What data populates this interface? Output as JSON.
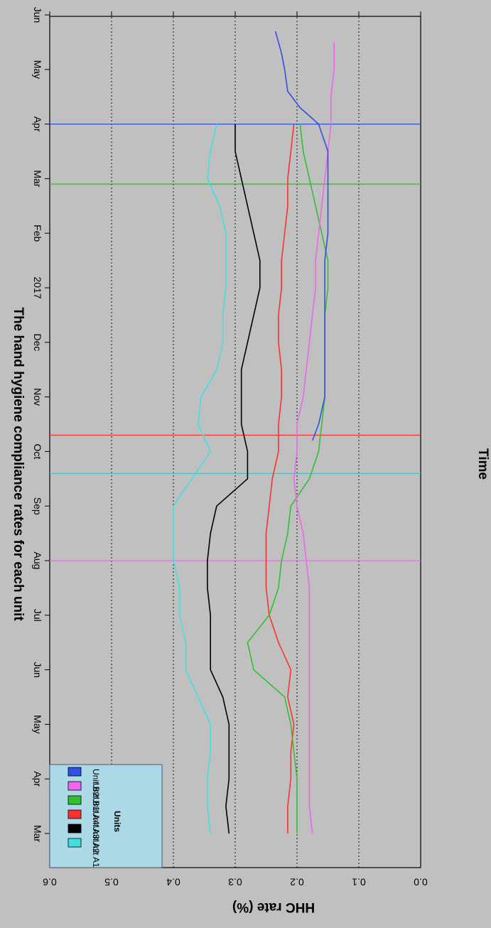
{
  "chart_data": {
    "type": "line",
    "title": "The hand hygiene compliance rates for each unit",
    "xlabel": "Time",
    "ylabel": "HHC rate (%)",
    "rotation": "image rotated 180 degrees",
    "x_ticks": [
      "Mar",
      "Apr",
      "May",
      "Jun",
      "Jul",
      "Aug",
      "Sep",
      "Oct",
      "Nov",
      "Dec",
      "2017",
      "Feb",
      "Mar",
      "Apr",
      "May",
      "Jun"
    ],
    "x_range_months": [
      0,
      15
    ],
    "y_ticks": [
      "0.0",
      "0.1",
      "0.2",
      "0.3",
      "0.4",
      "0.5",
      "0.6"
    ],
    "ylim": [
      0,
      0.6
    ],
    "grid": "horizontal dotted",
    "legend": {
      "title": "Units",
      "placement": "bottom-left",
      "entries": [
        "Unit A1",
        "Unit A2",
        "Unit A3",
        "Unit A4",
        "Unit B1",
        "Unit B2"
      ]
    },
    "series": [
      {
        "name": "Unit A1",
        "color": "#40e0e0",
        "points": [
          [
            0,
            0.34
          ],
          [
            0.5,
            0.345
          ],
          [
            1,
            0.345
          ],
          [
            1.5,
            0.34
          ],
          [
            2,
            0.34
          ],
          [
            2.5,
            0.36
          ],
          [
            3,
            0.38
          ],
          [
            3.5,
            0.38
          ],
          [
            4,
            0.39
          ],
          [
            4.5,
            0.39
          ],
          [
            5,
            0.4
          ],
          [
            5.5,
            0.4
          ],
          [
            6,
            0.4
          ],
          [
            6.5,
            0.37
          ],
          [
            7,
            0.34
          ],
          [
            7.5,
            0.36
          ],
          [
            8,
            0.355
          ],
          [
            8.5,
            0.33
          ],
          [
            9,
            0.32
          ],
          [
            9.5,
            0.32
          ],
          [
            10,
            0.315
          ],
          [
            10.5,
            0.315
          ],
          [
            11,
            0.315
          ],
          [
            11.5,
            0.325
          ],
          [
            12,
            0.345
          ],
          [
            12.5,
            0.34
          ],
          [
            13,
            0.33
          ]
        ]
      },
      {
        "name": "Unit A2",
        "color": "#000000",
        "points": [
          [
            0,
            0.31
          ],
          [
            0.5,
            0.315
          ],
          [
            1,
            0.31
          ],
          [
            1.5,
            0.31
          ],
          [
            2,
            0.31
          ],
          [
            2.5,
            0.32
          ],
          [
            3,
            0.34
          ],
          [
            3.5,
            0.34
          ],
          [
            4,
            0.34
          ],
          [
            4.5,
            0.345
          ],
          [
            5,
            0.345
          ],
          [
            5.5,
            0.34
          ],
          [
            6,
            0.33
          ],
          [
            6.5,
            0.28
          ],
          [
            7,
            0.28
          ],
          [
            7.5,
            0.29
          ],
          [
            8,
            0.29
          ],
          [
            8.5,
            0.29
          ],
          [
            9,
            0.28
          ],
          [
            9.5,
            0.27
          ],
          [
            10,
            0.26
          ],
          [
            10.5,
            0.26
          ],
          [
            11,
            0.27
          ],
          [
            11.5,
            0.28
          ],
          [
            12,
            0.29
          ],
          [
            12.5,
            0.3
          ],
          [
            13,
            0.3
          ]
        ]
      },
      {
        "name": "Unit A3",
        "color": "#ff3030",
        "points": [
          [
            0,
            0.215
          ],
          [
            0.5,
            0.215
          ],
          [
            1,
            0.21
          ],
          [
            1.5,
            0.21
          ],
          [
            2,
            0.205
          ],
          [
            2.5,
            0.215
          ],
          [
            3,
            0.21
          ],
          [
            3.5,
            0.23
          ],
          [
            4,
            0.245
          ],
          [
            4.5,
            0.25
          ],
          [
            5,
            0.25
          ],
          [
            5.5,
            0.25
          ],
          [
            6,
            0.245
          ],
          [
            6.5,
            0.24
          ],
          [
            7,
            0.23
          ],
          [
            7.5,
            0.23
          ],
          [
            8,
            0.225
          ],
          [
            8.5,
            0.225
          ],
          [
            9,
            0.23
          ],
          [
            9.5,
            0.23
          ],
          [
            10,
            0.225
          ],
          [
            10.5,
            0.225
          ],
          [
            11,
            0.22
          ],
          [
            11.5,
            0.215
          ],
          [
            12,
            0.215
          ],
          [
            12.5,
            0.21
          ],
          [
            13,
            0.205
          ]
        ]
      },
      {
        "name": "Unit A4",
        "color": "#30c030",
        "points": [
          [
            0,
            0.2
          ],
          [
            0.5,
            0.2
          ],
          [
            1,
            0.2
          ],
          [
            1.5,
            0.205
          ],
          [
            2,
            0.21
          ],
          [
            2.5,
            0.22
          ],
          [
            3,
            0.27
          ],
          [
            3.5,
            0.28
          ],
          [
            4,
            0.245
          ],
          [
            4.5,
            0.23
          ],
          [
            5,
            0.225
          ],
          [
            5.5,
            0.215
          ],
          [
            6,
            0.21
          ],
          [
            6.5,
            0.18
          ],
          [
            7,
            0.165
          ],
          [
            7.5,
            0.16
          ],
          [
            8,
            0.155
          ],
          [
            8.5,
            0.155
          ],
          [
            9,
            0.155
          ],
          [
            9.5,
            0.155
          ],
          [
            10,
            0.15
          ],
          [
            10.5,
            0.15
          ],
          [
            11,
            0.16
          ],
          [
            11.5,
            0.17
          ],
          [
            12,
            0.18
          ],
          [
            12.5,
            0.19
          ],
          [
            13,
            0.195
          ]
        ]
      },
      {
        "name": "Unit B1",
        "color": "#ee66ee",
        "points": [
          [
            0,
            0.175
          ],
          [
            0.5,
            0.18
          ],
          [
            1,
            0.18
          ],
          [
            1.5,
            0.18
          ],
          [
            2,
            0.18
          ],
          [
            2.5,
            0.18
          ],
          [
            3,
            0.18
          ],
          [
            3.5,
            0.18
          ],
          [
            4,
            0.18
          ],
          [
            4.5,
            0.18
          ],
          [
            5,
            0.185
          ],
          [
            5.5,
            0.19
          ],
          [
            6,
            0.2
          ],
          [
            6.5,
            0.205
          ],
          [
            7,
            0.2
          ],
          [
            7.5,
            0.2
          ],
          [
            8,
            0.19
          ],
          [
            8.5,
            0.185
          ],
          [
            9,
            0.18
          ],
          [
            9.5,
            0.175
          ],
          [
            10,
            0.17
          ],
          [
            10.5,
            0.17
          ],
          [
            11,
            0.165
          ],
          [
            11.5,
            0.16
          ],
          [
            12,
            0.155
          ],
          [
            12.5,
            0.15
          ],
          [
            13,
            0.145
          ],
          [
            13.5,
            0.145
          ],
          [
            14,
            0.14
          ],
          [
            14.5,
            0.14
          ]
        ]
      },
      {
        "name": "Unit B2",
        "color": "#3050e0",
        "points": [
          [
            7.2,
            0.175
          ],
          [
            7.5,
            0.165
          ],
          [
            8,
            0.155
          ],
          [
            8.5,
            0.155
          ],
          [
            9,
            0.155
          ],
          [
            9.5,
            0.155
          ],
          [
            10,
            0.155
          ],
          [
            10.5,
            0.155
          ],
          [
            11,
            0.15
          ],
          [
            11.5,
            0.15
          ],
          [
            12,
            0.15
          ],
          [
            12.5,
            0.15
          ],
          [
            13,
            0.165
          ],
          [
            13.3,
            0.195
          ],
          [
            13.6,
            0.215
          ],
          [
            14,
            0.22
          ],
          [
            14.3,
            0.225
          ],
          [
            14.5,
            0.23
          ],
          [
            14.7,
            0.235
          ]
        ]
      }
    ],
    "vertical_lines": [
      {
        "x": 5.0,
        "color": "#ee66ee"
      },
      {
        "x": 6.6,
        "color": "#000000"
      },
      {
        "x": 6.6,
        "color": "#40e0e0"
      },
      {
        "x": 7.3,
        "color": "#ff3030"
      },
      {
        "x": 11.9,
        "color": "#30c030"
      },
      {
        "x": 13.0,
        "color": "#3050e0"
      }
    ]
  }
}
